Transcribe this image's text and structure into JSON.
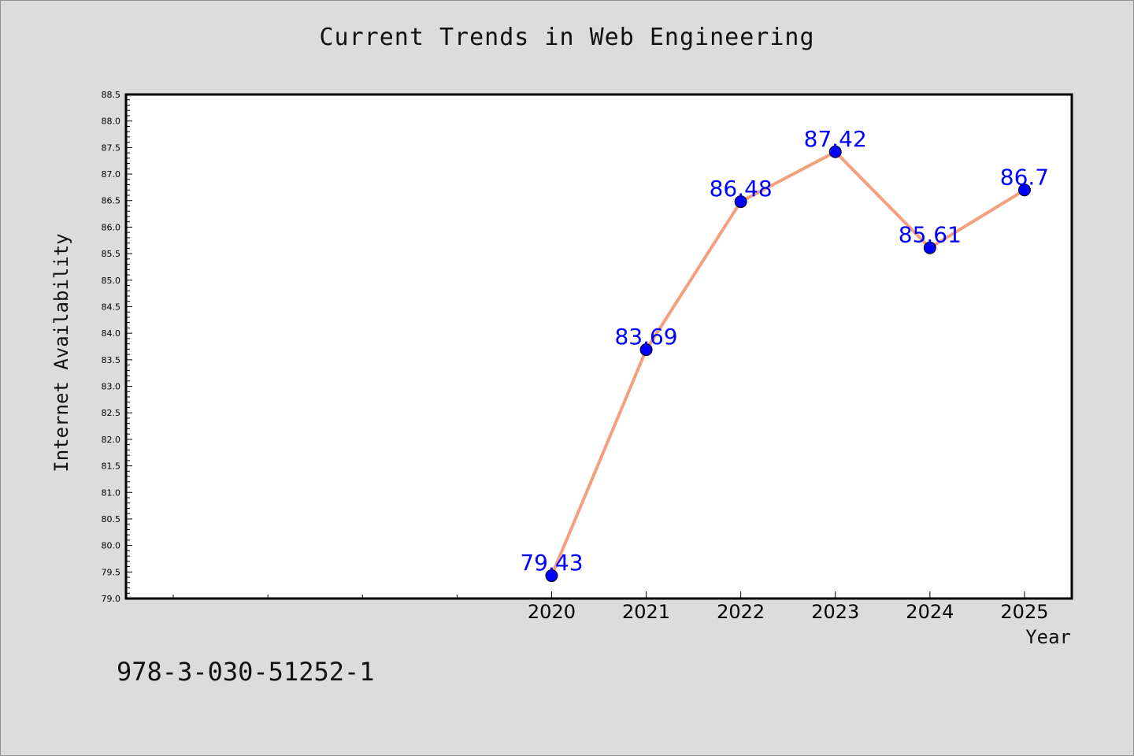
{
  "footer": {
    "identifier": "978-3-030-51252-1"
  },
  "chart_data": {
    "type": "line",
    "title": "Current Trends in Web Engineering",
    "xlabel": "Year",
    "ylabel": "Internet Availability",
    "x": [
      2020,
      2021,
      2022,
      2023,
      2024,
      2025
    ],
    "series": [
      {
        "values": [
          79.43,
          83.69,
          86.48,
          87.42,
          85.61,
          86.7
        ],
        "data_labels": [
          "79.43",
          "83.69",
          "86.48",
          "87.42",
          "85.61",
          "86.7"
        ]
      }
    ],
    "xlim": [
      2015.5,
      2025.5
    ],
    "ylim": [
      79.0,
      88.5
    ],
    "x_ticks": [
      "2020",
      "2021",
      "2022",
      "2023",
      "2024",
      "2025"
    ],
    "y_ticks": [
      "79.0",
      "79.5",
      "80.0",
      "80.5",
      "81.0",
      "81.5",
      "82.0",
      "82.5",
      "83.0",
      "83.5",
      "84.0",
      "84.5",
      "85.0",
      "85.5",
      "86.0",
      "86.5",
      "87.0",
      "87.5",
      "88.0",
      "88.5"
    ],
    "grid": false,
    "colors": {
      "line": "#f4a07e",
      "marker": "#0000ff",
      "label": "#0000ff",
      "plot_background": "#ffffff",
      "figure_background": "#dcdcdc"
    }
  }
}
